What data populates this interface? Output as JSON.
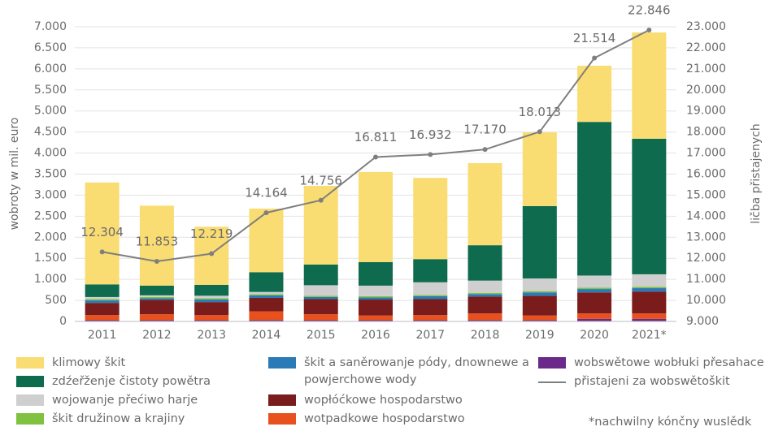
{
  "chart_data": {
    "type": "bar",
    "stacked": true,
    "y_label": "wobroty w mil. euro",
    "y2_label": "ličba přistajenych",
    "note": "*nachwilny kónčny wuslědk",
    "categories": [
      "2011",
      "2012",
      "2013",
      "2014",
      "2015",
      "2016",
      "2017",
      "2018",
      "2019",
      "2020",
      "2021*"
    ],
    "ylim": [
      0,
      7000
    ],
    "yticks": [
      0,
      {
        "value": 500,
        "label": "500"
      },
      {
        "value": 1000,
        "label": "1.000"
      },
      {
        "value": 1500,
        "label": "1.500"
      },
      {
        "value": 2000,
        "label": "2.000"
      },
      {
        "value": 2500,
        "label": "2.500"
      },
      {
        "value": 3000,
        "label": "3.000"
      },
      {
        "value": 3500,
        "label": "3.500"
      },
      {
        "value": 4000,
        "label": "4.000"
      },
      {
        "value": 4500,
        "label": "4.500"
      },
      {
        "value": 5000,
        "label": "5.000"
      },
      {
        "value": 5500,
        "label": "5.500"
      },
      {
        "value": 6000,
        "label": "6.000"
      },
      {
        "value": 6500,
        "label": "6.500"
      },
      {
        "value": 7000,
        "label": "7.000"
      }
    ],
    "y2lim": [
      9000,
      23000
    ],
    "y2ticks": [
      {
        "value": 9000,
        "label": "9.000"
      },
      {
        "value": 10000,
        "label": "10.000"
      },
      {
        "value": 11000,
        "label": "11.000"
      },
      {
        "value": 12000,
        "label": "12.000"
      },
      {
        "value": 13000,
        "label": "13.000"
      },
      {
        "value": 14000,
        "label": "14.000"
      },
      {
        "value": 15000,
        "label": "15.000"
      },
      {
        "value": 16000,
        "label": "16.000"
      },
      {
        "value": 17000,
        "label": "17.000"
      },
      {
        "value": 18000,
        "label": "18.000"
      },
      {
        "value": 19000,
        "label": "19.000"
      },
      {
        "value": 20000,
        "label": "20.000"
      },
      {
        "value": 21000,
        "label": "21.000"
      },
      {
        "value": 22000,
        "label": "22.000"
      },
      {
        "value": 23000,
        "label": "23.000"
      }
    ],
    "grid": true,
    "series": [
      {
        "name": "wobswětowe wobłuki přesahace",
        "color": "#6b2a8a",
        "values": [
          30,
          30,
          30,
          30,
          30,
          30,
          30,
          30,
          30,
          60,
          60
        ]
      },
      {
        "name": "wotpadkowe hospodarstwo",
        "color": "#e8501e",
        "values": [
          120,
          140,
          120,
          210,
          140,
          110,
          120,
          160,
          110,
          130,
          130
        ]
      },
      {
        "name": "wopłóćkowe hospodarstwo",
        "color": "#7a1c1c",
        "values": [
          290,
          340,
          310,
          320,
          360,
          380,
          380,
          400,
          470,
          500,
          520
        ]
      },
      {
        "name": "škit a saněrowanje pódy, dnownewe a powjerchowe wody",
        "color": "#2a7ab8",
        "values": [
          60,
          40,
          60,
          60,
          50,
          50,
          70,
          60,
          80,
          80,
          80
        ]
      },
      {
        "name": "škit družinow a krajiny",
        "color": "#7fc241",
        "values": [
          30,
          30,
          30,
          30,
          30,
          30,
          30,
          30,
          30,
          30,
          30
        ]
      },
      {
        "name": "wojowanje přećiwo harje",
        "color": "#cfcfcf",
        "values": [
          50,
          40,
          60,
          50,
          250,
          250,
          300,
          290,
          300,
          290,
          300
        ]
      },
      {
        "name": "zdźeřženje čistoty powětra",
        "color": "#0e6b4e",
        "values": [
          300,
          230,
          260,
          470,
          490,
          560,
          550,
          840,
          1720,
          3650,
          3220
        ]
      },
      {
        "name": "klimowy škit",
        "color": "#f9dc72",
        "values": [
          2420,
          1900,
          1380,
          1510,
          1870,
          2140,
          1930,
          1950,
          1750,
          1335,
          2525
        ]
      },
      {
        "name": "přistajeni za wobswětoškit",
        "color": "#7f7f7f",
        "type": "line",
        "axis": "y2",
        "values": [
          12304,
          11853,
          12219,
          14164,
          14756,
          16811,
          16932,
          17170,
          18013,
          21514,
          22846
        ],
        "value_labels": [
          "12.304",
          "11.853",
          "12.219",
          "14.164",
          "14.756",
          "16.811",
          "16.932",
          "17.170",
          "18.013",
          "21.514",
          "22.846"
        ]
      }
    ]
  }
}
